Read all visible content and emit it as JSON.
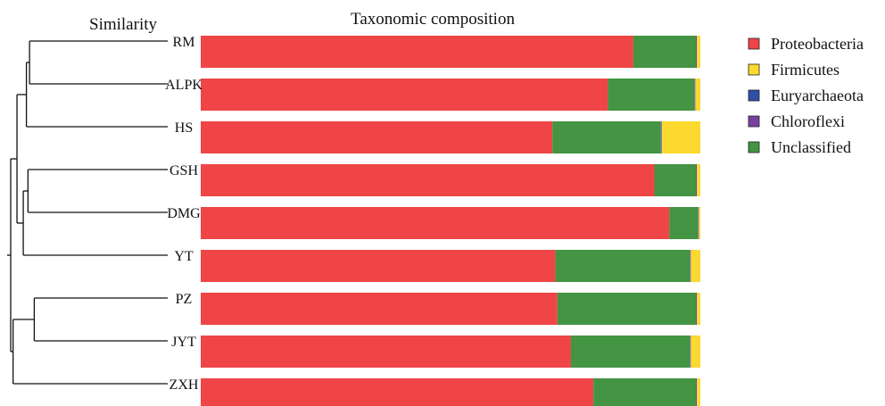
{
  "chart_data": {
    "type": "bar",
    "orientation": "horizontal",
    "stacked": true,
    "normalized": true,
    "title": "Taxonomic composition",
    "dendrogram_title": "Similarity",
    "categories": [
      "RM",
      "ALPK",
      "HS",
      "GSH",
      "DMG",
      "YT",
      "PZ",
      "JYT",
      "ZXH"
    ],
    "series": [
      {
        "name": "Proteobacteria",
        "color": "#ef4547",
        "values": [
          86.6,
          81.5,
          70.4,
          90.8,
          93.8,
          71.0,
          71.4,
          74.1,
          78.6
        ]
      },
      {
        "name": "Firmicutes",
        "color": "#fbd92f",
        "values": [
          0.7,
          1.0,
          7.7,
          0.7,
          0.3,
          1.9,
          0.7,
          1.9,
          0.7
        ]
      },
      {
        "name": "Euryarchaeota",
        "color": "#2f4fa8",
        "values": [
          0.1,
          0.1,
          0.1,
          0.1,
          0.1,
          0.1,
          0.1,
          0.1,
          0.1
        ]
      },
      {
        "name": "Chloroflexi",
        "color": "#7a3fa0",
        "values": [
          0.1,
          0.1,
          0.1,
          0.1,
          0.1,
          0.1,
          0.1,
          0.1,
          0.1
        ]
      },
      {
        "name": "Unclassified",
        "color": "#439443",
        "values": [
          12.5,
          17.3,
          21.7,
          8.3,
          5.7,
          26.9,
          27.7,
          23.8,
          20.5
        ]
      }
    ],
    "segment_order": [
      "Proteobacteria",
      "Unclassified",
      "Euryarchaeota",
      "Chloroflexi",
      "Firmicutes"
    ],
    "xlim": [
      0,
      100
    ],
    "grid": false,
    "legend_position": "right",
    "dendrogram": {
      "leaves": [
        "RM",
        "ALPK",
        "HS",
        "GSH",
        "DMG",
        "YT",
        "PZ",
        "JYT",
        "ZXH"
      ],
      "merges": [
        {
          "left": "L:RM",
          "right": "L:ALPK",
          "height": 0.88
        },
        {
          "left": "N:0",
          "right": "L:HS",
          "height": 0.9
        },
        {
          "left": "L:GSH",
          "right": "L:DMG",
          "height": 0.89
        },
        {
          "left": "N:2",
          "right": "L:YT",
          "height": 0.92
        },
        {
          "left": "N:1",
          "right": "N:3",
          "height": 0.96
        },
        {
          "left": "L:PZ",
          "right": "L:JYT",
          "height": 0.85
        },
        {
          "left": "N:5",
          "right": "L:ZXH",
          "height": 0.985
        },
        {
          "left": "N:4",
          "right": "N:6",
          "height": 1.0
        }
      ]
    }
  }
}
